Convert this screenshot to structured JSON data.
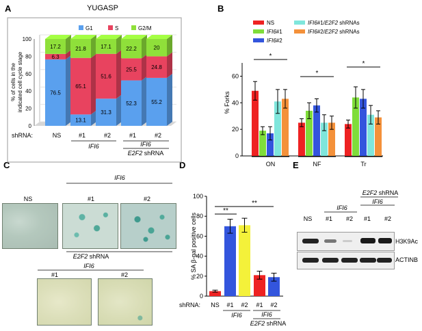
{
  "panels": {
    "A": "A",
    "B": "B",
    "C": "C",
    "D": "D",
    "E": "E"
  },
  "chart_data": [
    {
      "id": "A",
      "type": "bar",
      "stacked": true,
      "title": "YUGASP",
      "ylabel": "% of cells in the indicated cell cycle stage",
      "ylabel_line1": "% of cells in the",
      "ylabel_line2": "indicated cell cycle stage",
      "ylim": [
        0,
        100
      ],
      "yticks": [
        "0",
        "20",
        "40",
        "60",
        "80",
        "100"
      ],
      "categories": [
        "NS",
        "#1",
        "#2",
        "#1",
        "#2"
      ],
      "legend": {
        "placement": "top",
        "entries": [
          "G1",
          "S",
          "G2/M"
        ]
      },
      "series": [
        {
          "name": "G1",
          "color": "#5aa0ee",
          "values": [
            76.5,
            13.1,
            31.3,
            52.3,
            55.2
          ],
          "labels": [
            "76.5",
            "13.1",
            "31.3",
            "52.3",
            "55.2"
          ]
        },
        {
          "name": "S",
          "color": "#e8435f",
          "values": [
            6.3,
            65.1,
            51.6,
            25.5,
            24.8
          ],
          "labels": [
            "6.3",
            "65.1",
            "51.6",
            "25.5",
            "24.8"
          ]
        },
        {
          "name": "G2/M",
          "color": "#8fe03a",
          "values": [
            17.2,
            21.8,
            17.1,
            22.2,
            20
          ],
          "labels": [
            "17.2",
            "21.8",
            "17.1",
            "22.2",
            "20"
          ]
        }
      ],
      "xlabels": {
        "shrna": "shRNA:",
        "ifi6": "IFI6",
        "e2f2": "E2F2",
        "shrna_word": "shRNA"
      }
    },
    {
      "id": "B",
      "type": "bar",
      "ylabel": "% Forks",
      "ylim": [
        0,
        70
      ],
      "yticks": [
        "0",
        "20",
        "40",
        "60"
      ],
      "groups": [
        "ON",
        "NF",
        "Tr"
      ],
      "legend": {
        "placement": "top",
        "entries": [
          {
            "gene": "NS",
            "rest": ""
          },
          {
            "gene": "IFI6",
            "rest": "#1"
          },
          {
            "gene": "IFI6",
            "rest": "#2"
          },
          {
            "gene": "IFI6",
            "rest": "#1/",
            "gene2": "E2F2",
            "rest2": " shRNAs"
          },
          {
            "gene": "IFI6",
            "rest": "#2/",
            "gene2": "E2F2",
            "rest2": " shRNAs"
          }
        ]
      },
      "series": [
        {
          "name": "NS",
          "color": "#ee2222",
          "values": [
            49,
            25,
            24
          ],
          "errors": [
            7,
            3,
            3
          ]
        },
        {
          "name": "IFI6#1",
          "color": "#7fdd3a",
          "values": [
            19,
            34,
            44
          ],
          "errors": [
            3,
            6,
            8
          ]
        },
        {
          "name": "IFI6#2",
          "color": "#3355dd",
          "values": [
            17,
            38,
            43
          ],
          "errors": [
            5,
            5,
            7
          ]
        },
        {
          "name": "IFI6#1/E2F2 shRNAs",
          "color": "#7fe6dc",
          "values": [
            41,
            25,
            31
          ],
          "errors": [
            9,
            6,
            7
          ]
        },
        {
          "name": "IFI6#2/E2F2 shRNAs",
          "color": "#f4913a",
          "values": [
            43,
            25,
            29
          ],
          "errors": [
            7,
            5,
            5
          ]
        }
      ],
      "significance": [
        "*",
        "*",
        "*"
      ]
    },
    {
      "id": "D",
      "type": "bar",
      "ylabel": "% SA β-gal positive cells",
      "ylim": [
        0,
        100
      ],
      "yticks": [
        "0",
        "20",
        "40",
        "60",
        "80",
        "100"
      ],
      "categories": [
        "NS",
        "#1",
        "#2",
        "#1",
        "#2"
      ],
      "values": [
        5,
        70,
        71,
        21,
        19
      ],
      "errors": [
        1,
        7,
        7,
        4,
        4
      ],
      "colors": [
        "#ee2222",
        "#3355dd",
        "#f4f13a",
        "#ee2222",
        "#3355dd"
      ],
      "significance": [
        "**",
        "**"
      ],
      "xlabels": {
        "shrna": "shRNA:",
        "ifi6": "IFI6",
        "e2f2": "E2F2",
        "shrna_word": "shRNA"
      }
    }
  ],
  "panelC": {
    "ifi6": "IFI6",
    "ns": "NS",
    "n1": "#1",
    "n2": "#2",
    "e2f2": "E2F2",
    "shrna": "shRNA",
    "ifi6b": "IFI6",
    "n1b": "#1",
    "n2b": "#2"
  },
  "panelE": {
    "e2f2": "E2F2",
    "shrna": "shRNA",
    "ifi6a": "IFI6",
    "ifi6b": "IFI6",
    "lanes": [
      "NS",
      "#1",
      "#2",
      "#1",
      "#2"
    ],
    "h3k9ac": "H3K9Ac",
    "actinb": "ACTINB"
  }
}
